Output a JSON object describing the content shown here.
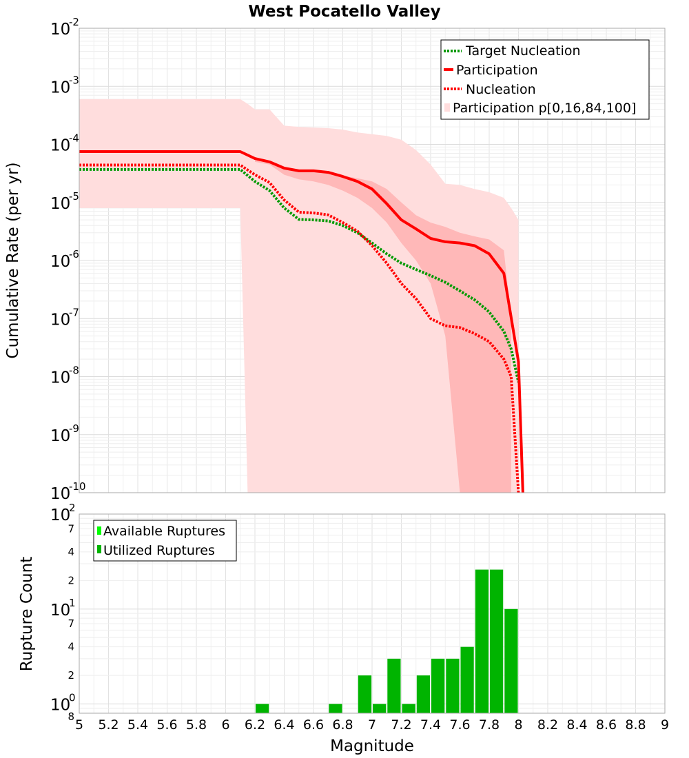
{
  "chart_data": [
    {
      "type": "line",
      "title": "West Pocatello Valley",
      "xlabel": "Magnitude",
      "ylabel": "Cumulative Rate (per yr)",
      "yscale": "log",
      "ylim": [
        1e-10,
        0.01
      ],
      "xlim": [
        5,
        9
      ],
      "y_ticks": [
        {
          "base": "10",
          "exp": "-10",
          "v": -10
        },
        {
          "base": "10",
          "exp": "-9",
          "v": -9
        },
        {
          "base": "10",
          "exp": "-8",
          "v": -8
        },
        {
          "base": "10",
          "exp": "-7",
          "v": -7
        },
        {
          "base": "10",
          "exp": "-6",
          "v": -6
        },
        {
          "base": "10",
          "exp": "-5",
          "v": -5
        },
        {
          "base": "10",
          "exp": "-4",
          "v": -4
        },
        {
          "base": "10",
          "exp": "-3",
          "v": -3
        },
        {
          "base": "10",
          "exp": "-2",
          "v": -2
        }
      ],
      "legend": {
        "position": "top-right",
        "entries": [
          {
            "label": "Target Nucleation",
            "style": "dotted",
            "color": "#009900"
          },
          {
            "label": "Participation",
            "style": "solid",
            "color": "#ff0000"
          },
          {
            "label": "Nucleation",
            "style": "dotted",
            "color": "#ff0000"
          },
          {
            "label": "Participation p[0,16,84,100]",
            "style": "fill",
            "color": "#ffdddd"
          }
        ]
      },
      "series": [
        {
          "name": "Target Nucleation",
          "color": "#009900",
          "style": "dotted",
          "x": [
            5.0,
            6.1,
            6.2,
            6.3,
            6.4,
            6.5,
            6.6,
            6.7,
            6.8,
            6.9,
            7.0,
            7.1,
            7.2,
            7.3,
            7.4,
            7.5,
            7.6,
            7.7,
            7.8,
            7.9,
            7.95,
            8.0
          ],
          "y": [
            3.7e-05,
            3.7e-05,
            2.3e-05,
            1.6e-05,
            8e-06,
            5.1e-06,
            5e-06,
            4.8e-06,
            4e-06,
            3e-06,
            2e-06,
            1.3e-06,
            9e-07,
            7e-07,
            5.5e-07,
            4.2e-07,
            3e-07,
            2.1e-07,
            1.3e-07,
            6e-08,
            3e-08,
            8e-09
          ]
        },
        {
          "name": "Participation",
          "color": "#ff0000",
          "style": "solid",
          "x": [
            5.0,
            6.1,
            6.2,
            6.3,
            6.4,
            6.5,
            6.6,
            6.7,
            6.8,
            6.9,
            7.0,
            7.1,
            7.2,
            7.3,
            7.4,
            7.5,
            7.6,
            7.7,
            7.8,
            7.9,
            8.0,
            8.03
          ],
          "y": [
            7.5e-05,
            7.5e-05,
            5.7e-05,
            5e-05,
            3.9e-05,
            3.5e-05,
            3.5e-05,
            3.3e-05,
            2.8e-05,
            2.3e-05,
            1.7e-05,
            9.5e-06,
            5e-06,
            3.5e-06,
            2.4e-06,
            2.1e-06,
            2e-06,
            1.8e-06,
            1.3e-06,
            6e-07,
            1.8e-08,
            1e-10
          ]
        },
        {
          "name": "Nucleation",
          "color": "#ff0000",
          "style": "dotted",
          "x": [
            5.0,
            6.1,
            6.2,
            6.3,
            6.4,
            6.5,
            6.6,
            6.7,
            6.8,
            6.9,
            7.0,
            7.1,
            7.2,
            7.3,
            7.4,
            7.5,
            7.6,
            7.7,
            7.8,
            7.9,
            7.95,
            8.0
          ],
          "y": [
            4.4e-05,
            4.4e-05,
            3e-05,
            2.2e-05,
            1.1e-05,
            6.8e-06,
            6.6e-06,
            6.1e-06,
            4.5e-06,
            3.2e-06,
            1.8e-06,
            9e-07,
            4e-07,
            2.2e-07,
            1e-07,
            7.5e-08,
            7e-08,
            5.5e-08,
            4e-08,
            2e-08,
            1e-08,
            1e-10
          ]
        }
      ],
      "bands": [
        {
          "name": "p0-p100",
          "color": "#ffdddd",
          "x": [
            5.0,
            6.1,
            6.15,
            6.2,
            6.3,
            6.4,
            6.5,
            6.6,
            6.7,
            6.8,
            6.9,
            7.0,
            7.1,
            7.2,
            7.3,
            7.4,
            7.5,
            7.6,
            7.7,
            7.8,
            7.9,
            7.95,
            8.0
          ],
          "upper": [
            0.0006,
            0.0006,
            0.0005,
            0.0004,
            0.0004,
            0.00021,
            0.0002,
            0.000195,
            0.00019,
            0.00018,
            0.00016,
            0.00015,
            0.00014,
            0.00012,
            8e-05,
            4.5e-05,
            2.1e-05,
            2e-05,
            1.7e-05,
            1.5e-05,
            1.2e-05,
            8e-06,
            5e-06
          ],
          "lower": [
            8e-06,
            8e-06,
            1e-10,
            1e-10,
            1e-10,
            1e-10,
            1e-10,
            1e-10,
            1e-10,
            1e-10,
            1e-10,
            1e-10,
            1e-10,
            1e-10,
            1e-10,
            1e-10,
            1e-10,
            1e-10,
            1e-10,
            1e-10,
            1e-10,
            1e-10,
            1e-10
          ]
        },
        {
          "name": "p16-p84",
          "color": "#ffb8b8",
          "x": [
            6.2,
            6.3,
            6.4,
            6.5,
            6.6,
            6.7,
            6.8,
            6.9,
            7.0,
            7.1,
            7.2,
            7.3,
            7.4,
            7.5,
            7.6,
            7.7,
            7.8,
            7.9,
            7.95
          ],
          "upper": [
            5.8e-05,
            5.1e-05,
            3.9e-05,
            3.6e-05,
            3.5e-05,
            3.3e-05,
            2.9e-05,
            2.6e-05,
            2.3e-05,
            1.7e-05,
            1e-05,
            6e-06,
            4.5e-06,
            3.8e-06,
            3e-06,
            2.6e-06,
            2.3e-06,
            1.5e-06,
            1e-07
          ],
          "lower": [
            5e-05,
            4.5e-05,
            3e-05,
            2.5e-05,
            2.3e-05,
            2e-05,
            1.6e-05,
            1.2e-05,
            8e-06,
            4.5e-06,
            2e-06,
            1e-06,
            4e-07,
            5e-08,
            1e-10,
            1e-10,
            1e-10,
            1e-10,
            1e-10
          ]
        }
      ]
    },
    {
      "type": "bar",
      "xlabel": "Magnitude",
      "ylabel": "Rupture Count",
      "yscale": "log",
      "ylim": [
        0.8,
        100
      ],
      "xlim": [
        5,
        9
      ],
      "x_ticks": [
        "5",
        "5.2",
        "5.4",
        "5.6",
        "5.8",
        "6",
        "6.2",
        "6.4",
        "6.6",
        "6.8",
        "7",
        "7.2",
        "7.4",
        "7.6",
        "7.8",
        "8",
        "8.2",
        "8.4",
        "8.6",
        "8.8",
        "9"
      ],
      "y_major_ticks": [
        {
          "base": "10",
          "exp": "0",
          "v": 1
        },
        {
          "base": "10",
          "exp": "1",
          "v": 10
        },
        {
          "base": "10",
          "exp": "2",
          "v": 100
        }
      ],
      "y_minor_ticks": [
        {
          "label": "8",
          "v": 0.8
        },
        {
          "label": "2",
          "v": 2
        },
        {
          "label": "4",
          "v": 4
        },
        {
          "label": "7",
          "v": 7
        },
        {
          "label": "2",
          "v": 20
        },
        {
          "label": "4",
          "v": 40
        },
        {
          "label": "7",
          "v": 70
        }
      ],
      "legend": {
        "position": "top-left",
        "entries": [
          {
            "label": "Available Ruptures",
            "color": "#00ff00"
          },
          {
            "label": "Utilized Ruptures",
            "color": "#00b400"
          }
        ]
      },
      "bar_width": 0.1,
      "series": [
        {
          "name": "Utilized Ruptures",
          "color": "#00b400",
          "bars": [
            {
              "x": 6.25,
              "v": 1
            },
            {
              "x": 6.75,
              "v": 1
            },
            {
              "x": 6.95,
              "v": 2
            },
            {
              "x": 7.05,
              "v": 1
            },
            {
              "x": 7.15,
              "v": 3
            },
            {
              "x": 7.25,
              "v": 1
            },
            {
              "x": 7.35,
              "v": 2
            },
            {
              "x": 7.45,
              "v": 3
            },
            {
              "x": 7.55,
              "v": 3
            },
            {
              "x": 7.65,
              "v": 4
            },
            {
              "x": 7.75,
              "v": 26
            },
            {
              "x": 7.85,
              "v": 26
            },
            {
              "x": 7.95,
              "v": 10
            }
          ]
        }
      ]
    }
  ]
}
